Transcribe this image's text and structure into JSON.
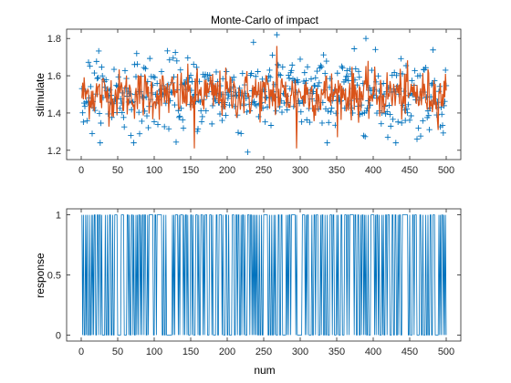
{
  "chart_data": [
    {
      "type": "scatter+line",
      "title": "Monte-Carlo of impact",
      "xlabel": "",
      "ylabel": "stimulate",
      "xlim": [
        -20,
        520
      ],
      "ylim": [
        1.15,
        1.85
      ],
      "xticks": [
        0,
        50,
        100,
        150,
        200,
        250,
        300,
        350,
        400,
        450,
        500
      ],
      "yticks": [
        1.2,
        1.4,
        1.6,
        1.8
      ],
      "ytick_labels": [
        "1.2",
        "1.4",
        "1.6",
        "1.8"
      ],
      "grid": false,
      "series": [
        {
          "marker": "+",
          "color": "#0072BD",
          "n_points": 500,
          "y_mean": 1.5,
          "y_spread": 0.1,
          "outliers": [
            [
              228,
              1.19
            ],
            [
              268,
              1.82
            ],
            [
              390,
              1.8
            ],
            [
              420,
              1.27
            ],
            [
              460,
              1.26
            ],
            [
              15,
              1.29
            ]
          ]
        },
        {
          "line": true,
          "color": "#D95319",
          "n_points": 500,
          "y_mean": 1.5,
          "y_spread": 0.06,
          "dips": [
            [
              155,
              1.21
            ],
            [
              295,
              1.21
            ],
            [
              268,
              1.76
            ]
          ]
        }
      ]
    },
    {
      "type": "line",
      "title": "",
      "xlabel": "num",
      "ylabel": "response",
      "xlim": [
        -20,
        520
      ],
      "ylim": [
        -0.05,
        1.05
      ],
      "xticks": [
        0,
        50,
        100,
        150,
        200,
        250,
        300,
        350,
        400,
        450,
        500
      ],
      "yticks": [
        0,
        0.5,
        1
      ],
      "ytick_labels": [
        "0",
        "0.5",
        "1"
      ],
      "grid": false,
      "series": [
        {
          "line": true,
          "color": "#0072BD",
          "n_points": 500,
          "values_binary": [
            0,
            1
          ]
        }
      ]
    }
  ]
}
